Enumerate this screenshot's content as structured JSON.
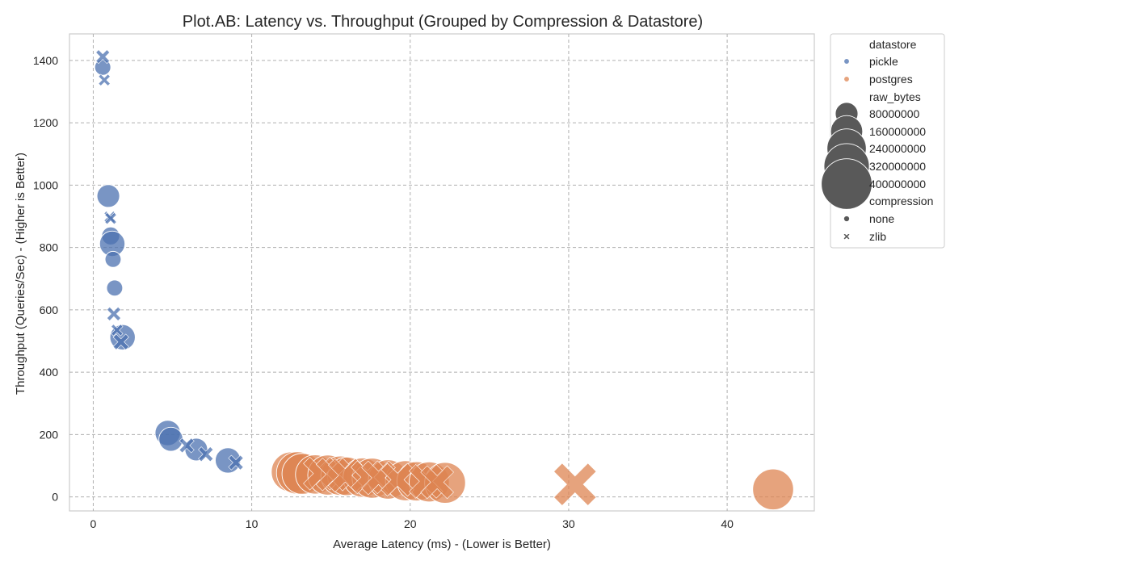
{
  "chart_data": {
    "type": "scatter",
    "title": "Plot.AB: Latency vs. Throughput (Grouped by Compression & Datastore)",
    "xlabel": "Average Latency (ms) - (Lower is Better)",
    "ylabel": "Throughput (Queries/Sec) - (Higher is Better)",
    "xlim": [
      -1.5,
      45.5
    ],
    "ylim": [
      -45,
      1485
    ],
    "xticks": [
      0,
      10,
      20,
      30,
      40
    ],
    "yticks": [
      0,
      200,
      400,
      600,
      800,
      1000,
      1200,
      1400
    ],
    "grid": true,
    "legend_position": "outside-top-right",
    "colors": {
      "pickle": "#4c72b0",
      "postgres": "#dd8452",
      "size_legend": "#595959"
    },
    "legend": {
      "hue_title": "datastore",
      "hue_entries": [
        "pickle",
        "postgres"
      ],
      "size_title": "raw_bytes",
      "size_entries": [
        {
          "label": "80000000",
          "value": 80000000
        },
        {
          "label": "160000000",
          "value": 160000000
        },
        {
          "label": "240000000",
          "value": 240000000
        },
        {
          "label": "320000000",
          "value": 320000000
        },
        {
          "label": "400000000",
          "value": 400000000
        }
      ],
      "style_title": "compression",
      "style_entries": [
        {
          "label": "none",
          "marker": "circle"
        },
        {
          "label": "zlib",
          "marker": "x"
        }
      ]
    },
    "series": [
      {
        "datastore": "pickle",
        "compression": "none",
        "points": [
          {
            "x": 0.6,
            "y": 1378,
            "raw_bytes": 40000000
          },
          {
            "x": 0.95,
            "y": 965,
            "raw_bytes": 80000000
          },
          {
            "x": 1.1,
            "y": 837,
            "raw_bytes": 50000000
          },
          {
            "x": 1.2,
            "y": 812,
            "raw_bytes": 100000000
          },
          {
            "x": 1.25,
            "y": 762,
            "raw_bytes": 40000000
          },
          {
            "x": 1.35,
            "y": 670,
            "raw_bytes": 40000000
          },
          {
            "x": 1.85,
            "y": 512,
            "raw_bytes": 100000000
          },
          {
            "x": 4.7,
            "y": 205,
            "raw_bytes": 100000000
          },
          {
            "x": 4.9,
            "y": 185,
            "raw_bytes": 90000000
          },
          {
            "x": 6.5,
            "y": 152,
            "raw_bytes": 80000000
          },
          {
            "x": 8.5,
            "y": 117,
            "raw_bytes": 100000000
          }
        ]
      },
      {
        "datastore": "pickle",
        "compression": "zlib",
        "points": [
          {
            "x": 0.6,
            "y": 1412,
            "raw_bytes": 35000000
          },
          {
            "x": 0.7,
            "y": 1337,
            "raw_bytes": 25000000
          },
          {
            "x": 1.05,
            "y": 898,
            "raw_bytes": 25000000
          },
          {
            "x": 1.1,
            "y": 893,
            "raw_bytes": 25000000
          },
          {
            "x": 1.3,
            "y": 587,
            "raw_bytes": 35000000
          },
          {
            "x": 1.5,
            "y": 535,
            "raw_bytes": 25000000
          },
          {
            "x": 1.75,
            "y": 497,
            "raw_bytes": 45000000
          },
          {
            "x": 5.9,
            "y": 165,
            "raw_bytes": 40000000
          },
          {
            "x": 7.1,
            "y": 137,
            "raw_bytes": 40000000
          },
          {
            "x": 9.0,
            "y": 110,
            "raw_bytes": 40000000
          }
        ]
      },
      {
        "datastore": "postgres",
        "compression": "none",
        "points": [
          {
            "x": 12.5,
            "y": 80,
            "raw_bytes": 250000000
          },
          {
            "x": 12.9,
            "y": 77,
            "raw_bytes": 280000000
          },
          {
            "x": 13.2,
            "y": 74,
            "raw_bytes": 260000000
          },
          {
            "x": 14.0,
            "y": 72,
            "raw_bytes": 240000000
          },
          {
            "x": 14.8,
            "y": 70,
            "raw_bytes": 250000000
          },
          {
            "x": 15.6,
            "y": 68,
            "raw_bytes": 240000000
          },
          {
            "x": 16.0,
            "y": 66,
            "raw_bytes": 230000000
          },
          {
            "x": 17.0,
            "y": 62,
            "raw_bytes": 240000000
          },
          {
            "x": 17.6,
            "y": 60,
            "raw_bytes": 250000000
          },
          {
            "x": 18.6,
            "y": 56,
            "raw_bytes": 240000000
          },
          {
            "x": 19.7,
            "y": 52,
            "raw_bytes": 250000000
          },
          {
            "x": 20.4,
            "y": 50,
            "raw_bytes": 240000000
          },
          {
            "x": 21.2,
            "y": 48,
            "raw_bytes": 250000000
          },
          {
            "x": 22.2,
            "y": 45,
            "raw_bytes": 260000000
          },
          {
            "x": 42.9,
            "y": 24,
            "raw_bytes": 260000000
          }
        ]
      },
      {
        "datastore": "postgres",
        "compression": "zlib",
        "points": [
          {
            "x": 14.3,
            "y": 75,
            "raw_bytes": 200000000
          },
          {
            "x": 15.1,
            "y": 72,
            "raw_bytes": 200000000
          },
          {
            "x": 15.9,
            "y": 69,
            "raw_bytes": 210000000
          },
          {
            "x": 17.3,
            "y": 63,
            "raw_bytes": 200000000
          },
          {
            "x": 18.0,
            "y": 61,
            "raw_bytes": 210000000
          },
          {
            "x": 19.2,
            "y": 55,
            "raw_bytes": 200000000
          },
          {
            "x": 21.0,
            "y": 50,
            "raw_bytes": 210000000
          },
          {
            "x": 21.7,
            "y": 47,
            "raw_bytes": 200000000
          },
          {
            "x": 30.4,
            "y": 40,
            "raw_bytes": 330000000
          }
        ]
      }
    ]
  }
}
